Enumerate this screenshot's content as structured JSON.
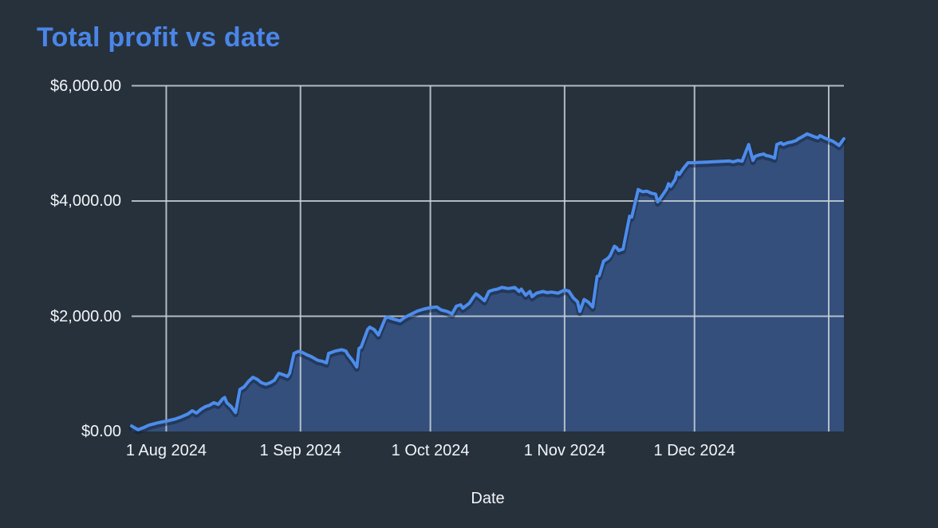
{
  "page": {
    "background_color": "#27313c"
  },
  "chart": {
    "title_color": "#4a86e8",
    "text_color": "#f2f5f8",
    "line_color": "#4d8ceb",
    "line_shadow_color": "rgba(15,30,55,0.45)",
    "fill_color": "#344f7b",
    "grid_color": "rgba(202,210,219,0.85)"
  },
  "chart_data": {
    "type": "area",
    "title": "Total profit vs date",
    "xlabel": "Date",
    "ylabel": "",
    "legend": null,
    "grid": true,
    "x_unit": "days since 24 Jul 2024",
    "xlim": [
      0,
      164.5
    ],
    "ylim": [
      0,
      6000
    ],
    "x_ticks": [
      {
        "day": 8,
        "label": "1 Aug 2024"
      },
      {
        "day": 39,
        "label": "1 Sep 2024"
      },
      {
        "day": 69,
        "label": "1 Oct 2024"
      },
      {
        "day": 100,
        "label": "1 Nov 2024"
      },
      {
        "day": 130,
        "label": "1 Dec 2024"
      },
      {
        "day": 161,
        "label": ""
      }
    ],
    "y_ticks": [
      {
        "value": 0,
        "label": "$0.00",
        "gridline": false
      },
      {
        "value": 2000,
        "label": "$2,000.00",
        "gridline": true
      },
      {
        "value": 4000,
        "label": "$4,000.00",
        "gridline": true
      },
      {
        "value": 6000,
        "label": "$6,000.00",
        "gridline": true
      }
    ],
    "series_name": "Total profit",
    "points": [
      [
        0,
        95
      ],
      [
        1.5,
        30
      ],
      [
        3,
        75
      ],
      [
        4,
        110
      ],
      [
        6,
        150
      ],
      [
        8,
        180
      ],
      [
        10,
        215
      ],
      [
        11.5,
        255
      ],
      [
        13,
        305
      ],
      [
        14,
        360
      ],
      [
        15,
        320
      ],
      [
        16,
        385
      ],
      [
        17,
        430
      ],
      [
        18,
        455
      ],
      [
        19,
        500
      ],
      [
        20,
        470
      ],
      [
        21,
        565
      ],
      [
        21.5,
        590
      ],
      [
        22,
        500
      ],
      [
        23,
        430
      ],
      [
        24,
        330
      ],
      [
        25,
        730
      ],
      [
        26,
        775
      ],
      [
        27,
        870
      ],
      [
        28,
        940
      ],
      [
        29,
        905
      ],
      [
        30,
        845
      ],
      [
        31,
        820
      ],
      [
        32,
        845
      ],
      [
        33,
        890
      ],
      [
        33.5,
        955
      ],
      [
        34,
        1010
      ],
      [
        35,
        985
      ],
      [
        36,
        955
      ],
      [
        36.5,
        1010
      ],
      [
        37.5,
        1355
      ],
      [
        38.5,
        1390
      ],
      [
        39.5,
        1370
      ],
      [
        40.5,
        1330
      ],
      [
        41.5,
        1300
      ],
      [
        43,
        1235
      ],
      [
        44,
        1220
      ],
      [
        45,
        1190
      ],
      [
        45.5,
        1355
      ],
      [
        47,
        1395
      ],
      [
        48.5,
        1420
      ],
      [
        49.5,
        1395
      ],
      [
        50,
        1330
      ],
      [
        51,
        1235
      ],
      [
        52,
        1120
      ],
      [
        52.5,
        1440
      ],
      [
        53,
        1465
      ],
      [
        54.5,
        1770
      ],
      [
        55,
        1810
      ],
      [
        56,
        1770
      ],
      [
        57,
        1675
      ],
      [
        58.5,
        1950
      ],
      [
        59,
        1990
      ],
      [
        60.5,
        1950
      ],
      [
        62,
        1920
      ],
      [
        63,
        1975
      ],
      [
        64,
        2015
      ],
      [
        66,
        2090
      ],
      [
        67.5,
        2125
      ],
      [
        69,
        2150
      ],
      [
        70.5,
        2160
      ],
      [
        71.5,
        2110
      ],
      [
        73,
        2080
      ],
      [
        74,
        2040
      ],
      [
        75,
        2175
      ],
      [
        76,
        2200
      ],
      [
        76.5,
        2140
      ],
      [
        78,
        2225
      ],
      [
        79,
        2340
      ],
      [
        79.5,
        2390
      ],
      [
        80,
        2365
      ],
      [
        81.5,
        2270
      ],
      [
        82.5,
        2430
      ],
      [
        83.5,
        2455
      ],
      [
        84.5,
        2470
      ],
      [
        85.5,
        2500
      ],
      [
        87,
        2480
      ],
      [
        88.5,
        2500
      ],
      [
        89.5,
        2430
      ],
      [
        90,
        2470
      ],
      [
        91,
        2365
      ],
      [
        92,
        2430
      ],
      [
        92.5,
        2340
      ],
      [
        93.5,
        2400
      ],
      [
        95,
        2430
      ],
      [
        96,
        2410
      ],
      [
        97,
        2420
      ],
      [
        98.5,
        2400
      ],
      [
        100,
        2455
      ],
      [
        101,
        2435
      ],
      [
        102,
        2320
      ],
      [
        103,
        2250
      ],
      [
        103.5,
        2085
      ],
      [
        104.5,
        2290
      ],
      [
        105.5,
        2245
      ],
      [
        106.5,
        2160
      ],
      [
        107.5,
        2690
      ],
      [
        108,
        2705
      ],
      [
        109,
        2955
      ],
      [
        110,
        3005
      ],
      [
        110.5,
        3050
      ],
      [
        111.5,
        3215
      ],
      [
        112,
        3190
      ],
      [
        112.5,
        3140
      ],
      [
        113.5,
        3165
      ],
      [
        115,
        3735
      ],
      [
        115.5,
        3720
      ],
      [
        117,
        4200
      ],
      [
        118,
        4160
      ],
      [
        119,
        4170
      ],
      [
        120,
        4135
      ],
      [
        121,
        4120
      ],
      [
        121.5,
        3985
      ],
      [
        122.5,
        4090
      ],
      [
        123.5,
        4200
      ],
      [
        124,
        4300
      ],
      [
        124.5,
        4255
      ],
      [
        125.5,
        4370
      ],
      [
        126,
        4500
      ],
      [
        126.5,
        4460
      ],
      [
        127.5,
        4570
      ],
      [
        128.5,
        4665
      ],
      [
        130,
        4665
      ],
      [
        131,
        4670
      ],
      [
        133,
        4675
      ],
      [
        134,
        4680
      ],
      [
        135.5,
        4685
      ],
      [
        137,
        4690
      ],
      [
        138,
        4695
      ],
      [
        139,
        4680
      ],
      [
        140,
        4705
      ],
      [
        141,
        4690
      ],
      [
        142.5,
        4980
      ],
      [
        143.5,
        4705
      ],
      [
        144,
        4775
      ],
      [
        145,
        4800
      ],
      [
        146,
        4815
      ],
      [
        146.5,
        4790
      ],
      [
        147.5,
        4775
      ],
      [
        148.5,
        4745
      ],
      [
        149,
        4980
      ],
      [
        150,
        5010
      ],
      [
        150.5,
        4980
      ],
      [
        151.5,
        5010
      ],
      [
        152.5,
        5025
      ],
      [
        153.5,
        5050
      ],
      [
        154,
        5080
      ],
      [
        155,
        5120
      ],
      [
        156,
        5165
      ],
      [
        157.5,
        5120
      ],
      [
        158.5,
        5095
      ],
      [
        159,
        5135
      ],
      [
        160,
        5095
      ],
      [
        161,
        5065
      ],
      [
        162,
        5035
      ],
      [
        162.5,
        5010
      ],
      [
        163.4,
        4965
      ],
      [
        164.5,
        5080
      ]
    ]
  }
}
